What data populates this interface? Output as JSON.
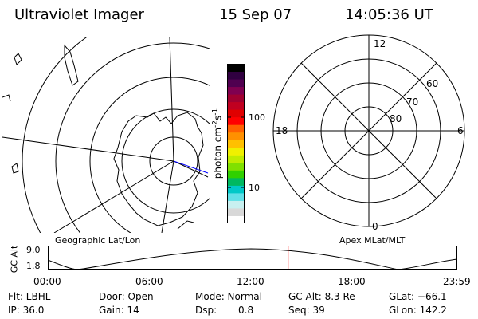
{
  "header": {
    "instrument": "Ultraviolet Imager",
    "date": "15 Sep 07",
    "time": "14:05:36 UT"
  },
  "colorbar": {
    "unit_base": "photon cm",
    "unit_exp1": "-2",
    "unit_mid": "s",
    "unit_exp2": "-1",
    "tick_high": "100",
    "tick_low": "10",
    "colors": [
      "#ffffff",
      "#d8d8d8",
      "#c8f0f0",
      "#60e0e8",
      "#00c8c8",
      "#00b860",
      "#30d000",
      "#80e000",
      "#c0ec00",
      "#f0f000",
      "#ffc000",
      "#ff9000",
      "#ff6000",
      "#ff0000",
      "#e00000",
      "#c00020",
      "#a00030",
      "#800050",
      "#500050",
      "#300040",
      "#000000"
    ]
  },
  "map_left": {
    "caption": "Geographic Lat/Lon"
  },
  "map_right": {
    "caption": "Apex MLat/MLT",
    "mlt_labels": {
      "top": "12",
      "left": "18",
      "right": "6",
      "bottom": "0"
    },
    "lat_labels": [
      "60",
      "70",
      "80"
    ]
  },
  "timeline": {
    "axis_label": "GC Alt",
    "y_max": "9.0",
    "y_min": "1.8",
    "ticks": [
      "00:00",
      "06:00",
      "12:00",
      "18:00",
      "23:59"
    ],
    "current_fraction": 0.587,
    "marker_color": "#ff0000"
  },
  "footer": {
    "filter": "Flt: LBHL",
    "ip": "IP: 36.0",
    "door": "Door: Open",
    "gain": "Gain: 14",
    "mode": "Mode: Normal",
    "dsp_label": "Dsp:",
    "dsp_value": "0.8",
    "gc_alt": "GC Alt: 8.3 Re",
    "seq": "Seq: 39",
    "glat": "GLat: −66.1",
    "glon": "GLon: 142.2"
  }
}
